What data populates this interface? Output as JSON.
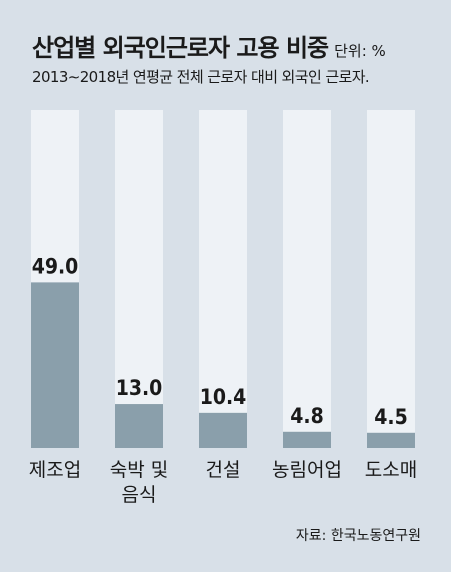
{
  "header": {
    "title": "산업별 외국인근로자 고용 비중",
    "unit": "단위: %",
    "subtitle": "2013∼2018년 연평균 전체 근로자 대비 외국인 근로자."
  },
  "footer": {
    "source": "자료: 한국노동연구원"
  },
  "colors": {
    "background": "#d8e0e8",
    "track": "#eef2f6",
    "bar": "#8a9fab",
    "text": "#1a1a1a"
  },
  "chart_data": {
    "type": "bar",
    "categories": [
      "제조업",
      "숙박 및 음식",
      "건설",
      "농림어업",
      "도소매"
    ],
    "category_lines": [
      [
        "제조업"
      ],
      [
        "숙박 및",
        "음식"
      ],
      [
        "건설"
      ],
      [
        "농림어업"
      ],
      [
        "도소매"
      ]
    ],
    "values": [
      49.0,
      13.0,
      10.4,
      4.8,
      4.5
    ],
    "value_labels": [
      "49.0",
      "13.0",
      "10.4",
      "4.8",
      "4.5"
    ],
    "ylim": [
      0,
      100
    ],
    "title": "산업별 외국인근로자 고용 비중",
    "xlabel": "",
    "ylabel": ""
  }
}
